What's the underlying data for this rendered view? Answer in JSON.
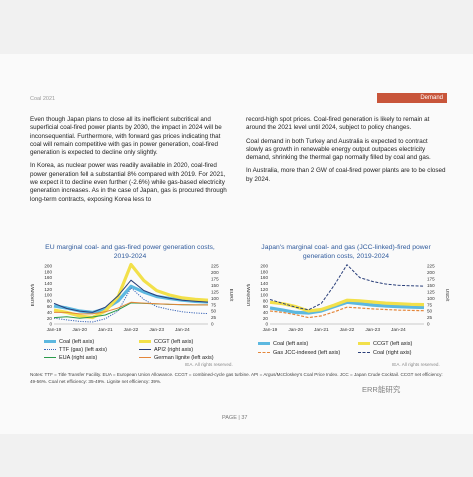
{
  "header": {
    "running_title": "Coal 2021",
    "section_tag": "Demand"
  },
  "left_column": [
    "Even though Japan plans to close all its inefficient subcritical and superficial coal-fired power plants by 2030, the impact in 2024 will be inconsequential. Furthermore, with forward gas prices indicating that coal will remain competitive with gas in power generation, coal-fired generation is expected to decline only slightly.",
    "In Korea, as nuclear power was readily available in 2020, coal-fired power generation fell a substantial 8% compared with 2019. For 2021, we expect it to decline even further (-2.6%) while gas-based electricity generation increases. As in the case of Japan, gas is procured through long-term contracts, exposing Korea less to"
  ],
  "right_column": [
    "record-high spot prices. Coal-fired generation is likely to remain at around the 2021 level until 2024, subject to policy changes.",
    "Coal demand in both Turkey and Australia is expected to contract slowly as growth in renewable energy output outpaces electricity demand, shrinking the thermal gap normally filled by coal and gas.",
    "In Australia, more than 2 GW of coal-fired power plants are to be closed by 2024."
  ],
  "chart_left": {
    "title_line1": "EU marginal coal- and gas-fired power generation costs,",
    "title_line2": "2019-2024",
    "y_left_label": "EUR/MWh",
    "y_right_label": "EUR/t",
    "legend": [
      "Coal (left axis)",
      "CCGT (left axis)",
      "TTF (gas) (left axis)",
      "API2 (right axis)",
      "EUA (right axis)",
      "German lignite (left axis)"
    ],
    "source": "IEA. All rights reserved."
  },
  "chart_right": {
    "title_line1": "Japan's marginal coal- and gas (JCC-linked)-fired power",
    "title_line2": "generation costs, 2019-2024",
    "y_left_label": "USD/MWh",
    "y_right_label": "USD/t",
    "legend": [
      "Coal (left axis)",
      "CCGT (left axis)",
      "Gas JCC-indexed (left axis)",
      "Coal (right axis)"
    ],
    "source": "IEA. All rights reserved."
  },
  "notes": "Notes: TTF = Title Transfer Facility. EUA = European Union Allowance. CCGT = combined-cycle gas turbine. API = Argus/McCloskey's Coal Price Index. JCC = Japan Crude Cocktail. CCGT net efficiency: 49-56%. Coal net efficiency: 35-49%. Lignite net efficiency: 39%.",
  "page_number": "PAGE | 37",
  "watermark": "ERR能研究",
  "colors": {
    "title_blue": "#2f5a9c",
    "coal": "#5cb8e0",
    "ccgt": "#f2e04a",
    "ttf": "#3b66b8",
    "api2": "#2a3f7a",
    "eua": "#2a9a4a",
    "lignite": "#e4863a",
    "tag": "#c8553a"
  },
  "chart_data": [
    {
      "type": "line",
      "title": "EU marginal coal- and gas-fired power generation costs, 2019-2024",
      "x": [
        "Jan-19",
        "Jul-19",
        "Jan-20",
        "Jul-20",
        "Jan-21",
        "Jul-21",
        "Jan-22",
        "Jul-22",
        "Jan-23",
        "Jul-23",
        "Jan-24",
        "Jul-24",
        "Dec-24"
      ],
      "x_ticks": [
        "Jan-19",
        "Jan-20",
        "Jan-21",
        "Jan-22",
        "Jan-23",
        "Jan-24"
      ],
      "y_left_ticks": [
        "0",
        "20",
        "40",
        "60",
        "80",
        "100",
        "120",
        "140",
        "160",
        "180",
        "200"
      ],
      "y_right_ticks": [
        "0",
        "25",
        "50",
        "75",
        "100",
        "125",
        "150",
        "175",
        "200",
        "225"
      ],
      "ylim": [
        0,
        200
      ],
      "ylim_right": [
        0,
        225
      ],
      "series": [
        {
          "name": "Coal (left axis)",
          "axis": "left",
          "values": [
            62,
            55,
            45,
            40,
            52,
            80,
            130,
            110,
            95,
            88,
            82,
            78,
            76
          ]
        },
        {
          "name": "CCGT (left axis)",
          "axis": "left",
          "values": [
            48,
            40,
            28,
            22,
            45,
            95,
            205,
            150,
            115,
            100,
            90,
            85,
            82
          ]
        },
        {
          "name": "TTF (gas) (left axis)",
          "axis": "left",
          "values": [
            20,
            14,
            9,
            7,
            18,
            45,
            125,
            85,
            60,
            50,
            42,
            38,
            36
          ]
        },
        {
          "name": "API2 (right axis)",
          "axis": "right",
          "values": [
            80,
            60,
            50,
            45,
            65,
            110,
            170,
            130,
            110,
            100,
            92,
            88,
            85
          ]
        },
        {
          "name": "EUA (right axis)",
          "axis": "right",
          "values": [
            25,
            28,
            22,
            27,
            35,
            55,
            82,
            80,
            78,
            76,
            75,
            74,
            74
          ]
        },
        {
          "name": "German lignite (left axis)",
          "axis": "left",
          "values": [
            40,
            40,
            35,
            35,
            42,
            55,
            75,
            72,
            70,
            68,
            67,
            66,
            66
          ]
        }
      ]
    },
    {
      "type": "line",
      "title": "Japan's marginal coal- and gas (JCC-linked)-fired power generation costs, 2019-2024",
      "x": [
        "Jan-19",
        "Jul-19",
        "Jan-20",
        "Jul-20",
        "Jan-21",
        "Jul-21",
        "Jan-22",
        "Jul-22",
        "Jan-23",
        "Jul-23",
        "Jan-24",
        "Jul-24",
        "Dec-24"
      ],
      "x_ticks": [
        "Jan-19",
        "Jan-20",
        "Jan-21",
        "Jan-22",
        "Jan-23",
        "Jan-24"
      ],
      "y_left_ticks": [
        "0",
        "20",
        "40",
        "60",
        "80",
        "100",
        "120",
        "140",
        "160",
        "180",
        "200"
      ],
      "y_right_ticks": [
        "0",
        "25",
        "50",
        "75",
        "100",
        "125",
        "150",
        "175",
        "200",
        "225"
      ],
      "ylim": [
        0,
        200
      ],
      "ylim_right": [
        0,
        225
      ],
      "series": [
        {
          "name": "Coal (left axis)",
          "axis": "left",
          "values": [
            55,
            48,
            40,
            38,
            45,
            60,
            75,
            70,
            65,
            62,
            60,
            58,
            57
          ]
        },
        {
          "name": "CCGT (left axis)",
          "axis": "left",
          "values": [
            75,
            70,
            60,
            45,
            50,
            65,
            82,
            80,
            76,
            72,
            70,
            68,
            67
          ]
        },
        {
          "name": "Gas JCC-indexed (left axis)",
          "axis": "left",
          "values": [
            45,
            40,
            32,
            22,
            28,
            42,
            58,
            55,
            52,
            50,
            48,
            47,
            46
          ]
        },
        {
          "name": "Coal (right axis)",
          "axis": "right",
          "values": [
            95,
            80,
            65,
            55,
            80,
            150,
            230,
            180,
            165,
            155,
            150,
            148,
            147
          ]
        }
      ]
    }
  ]
}
